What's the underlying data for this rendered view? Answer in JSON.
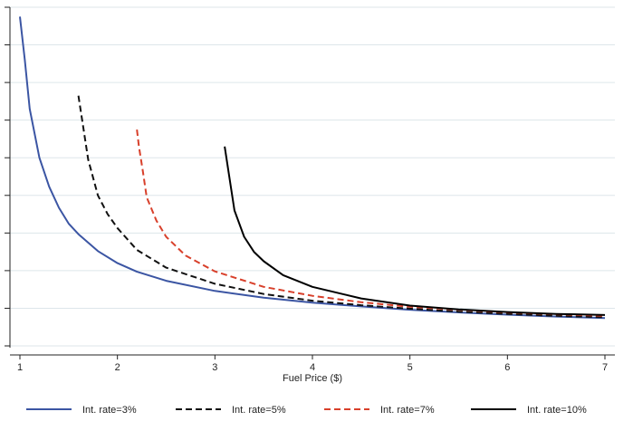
{
  "chart_data": {
    "type": "line",
    "title": "",
    "xlabel": "Fuel Price ($)",
    "ylabel": "",
    "xlim": [
      1,
      7
    ],
    "ylim": [
      0,
      9
    ],
    "x_ticks": [
      1,
      2,
      3,
      4,
      5,
      6,
      7
    ],
    "y_ticks": [
      0,
      1,
      2,
      3,
      4,
      5,
      6,
      7,
      8,
      9
    ],
    "y_tick_labels_visible": false,
    "grid": "horizontal",
    "legend_position": "bottom",
    "series": [
      {
        "name": "Int. rate=3%",
        "color": "#3b55a3",
        "dash": "solid",
        "x": [
          1.0,
          1.05,
          1.1,
          1.2,
          1.3,
          1.4,
          1.5,
          1.6,
          1.8,
          2.0,
          2.2,
          2.5,
          3.0,
          3.5,
          4.0,
          4.5,
          5.0,
          5.5,
          6.0,
          6.5,
          7.0
        ],
        "y": [
          8.75,
          7.6,
          6.3,
          5.0,
          4.23,
          3.67,
          3.25,
          2.97,
          2.52,
          2.2,
          1.97,
          1.73,
          1.46,
          1.28,
          1.15,
          1.05,
          0.96,
          0.89,
          0.83,
          0.78,
          0.74
        ]
      },
      {
        "name": "Int. rate=5%",
        "color": "#111111",
        "dash": "dashed",
        "x": [
          1.6,
          1.65,
          1.7,
          1.8,
          1.9,
          2.0,
          2.2,
          2.5,
          3.0,
          3.5,
          4.0,
          4.5,
          5.0,
          5.5,
          6.0,
          6.5,
          7.0
        ],
        "y": [
          6.65,
          5.8,
          4.95,
          4.0,
          3.5,
          3.13,
          2.55,
          2.08,
          1.65,
          1.38,
          1.2,
          1.08,
          0.99,
          0.91,
          0.85,
          0.8,
          0.76
        ]
      },
      {
        "name": "Int. rate=7%",
        "color": "#d8402b",
        "dash": "dashed",
        "x": [
          2.2,
          2.22,
          2.26,
          2.3,
          2.4,
          2.5,
          2.7,
          3.0,
          3.5,
          4.0,
          4.5,
          5.0,
          5.5,
          6.0,
          6.5,
          7.0
        ],
        "y": [
          5.75,
          5.3,
          4.65,
          3.95,
          3.33,
          2.9,
          2.4,
          1.98,
          1.57,
          1.33,
          1.16,
          1.04,
          0.96,
          0.89,
          0.84,
          0.8
        ]
      },
      {
        "name": "Int. rate=10%",
        "color": "#000000",
        "dash": "solid",
        "x": [
          3.1,
          3.15,
          3.2,
          3.3,
          3.4,
          3.5,
          3.7,
          4.0,
          4.5,
          5.0,
          5.5,
          6.0,
          6.5,
          7.0
        ],
        "y": [
          5.3,
          4.45,
          3.6,
          2.9,
          2.5,
          2.25,
          1.88,
          1.57,
          1.26,
          1.07,
          0.97,
          0.9,
          0.85,
          0.82
        ]
      }
    ]
  }
}
